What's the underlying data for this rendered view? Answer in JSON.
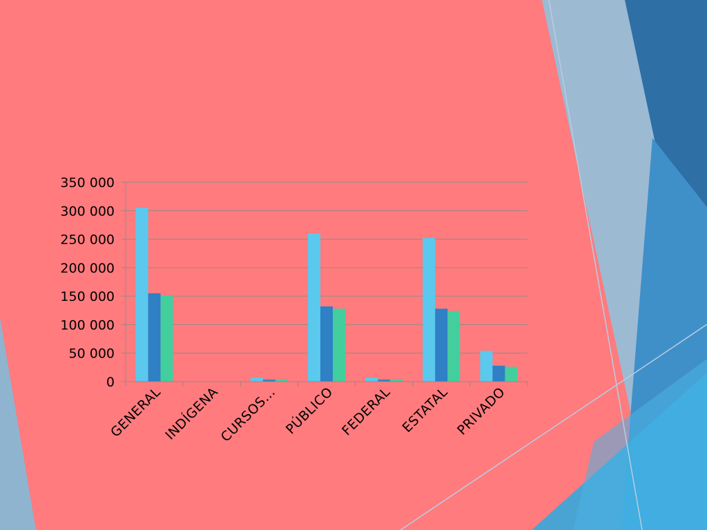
{
  "slide": {
    "colors": {
      "background": "#FF7B7E",
      "dark_blue": "#2E6FA5",
      "mid_blue": "#3C8FC8",
      "light_blue": "#9DBAD3",
      "cyan": "#36A9DD"
    }
  },
  "chart_data": {
    "type": "bar",
    "categories": [
      "GENERAL",
      "INDÍGENA",
      "CURSOS…",
      "PÚBLICO",
      "FEDERAL",
      "ESTATAL",
      "PRIVADO"
    ],
    "series": [
      {
        "color": "#5BC8EE",
        "values": [
          305000,
          0,
          7000,
          260000,
          7000,
          252000,
          54000
        ]
      },
      {
        "color": "#2F80C4",
        "values": [
          155000,
          0,
          3500,
          132000,
          3500,
          128000,
          28000
        ]
      },
      {
        "color": "#43CE9E",
        "values": [
          151000,
          0,
          3500,
          128000,
          3500,
          124000,
          26000
        ]
      }
    ],
    "y_ticks": [
      "0",
      "50 000",
      "100 000",
      "150 000",
      "200 000",
      "250 000",
      "300 000",
      "350 000"
    ],
    "ylim": [
      0,
      350000
    ],
    "grid": true,
    "legend": "none",
    "title": "",
    "xlabel": "",
    "ylabel": ""
  }
}
